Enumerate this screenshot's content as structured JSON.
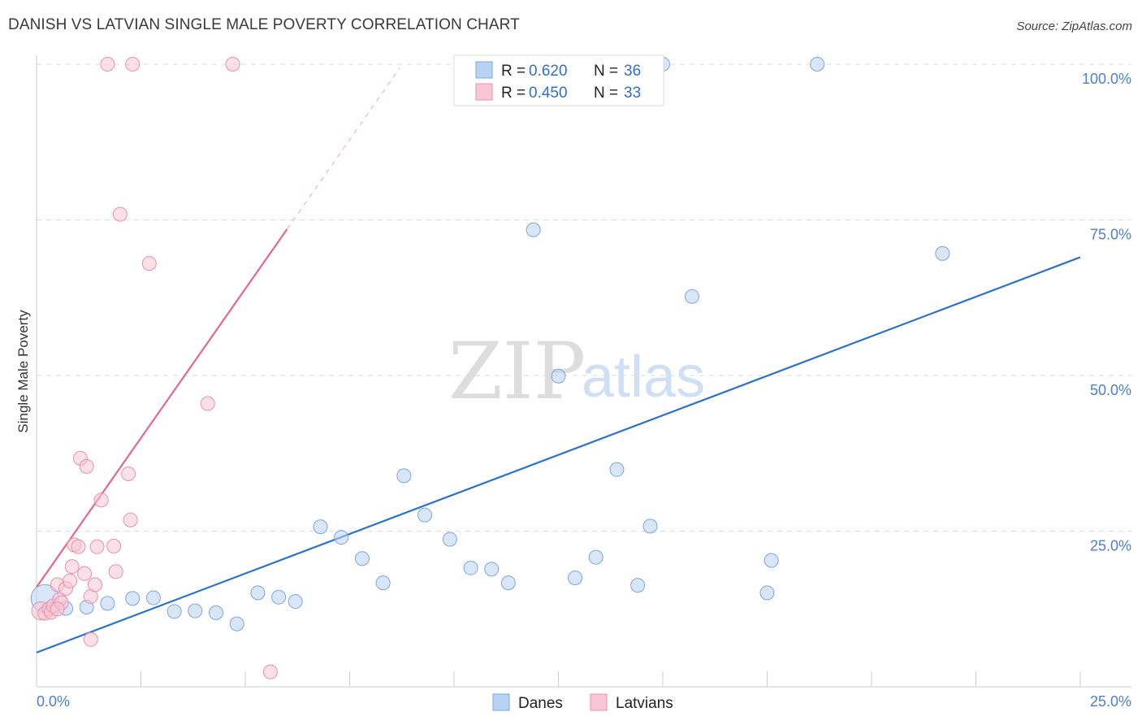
{
  "title": "DANISH VS LATVIAN SINGLE MALE POVERTY CORRELATION CHART",
  "source": "Source: ZipAtlas.com",
  "watermark": {
    "zip": "ZIP",
    "atlas": "atlas"
  },
  "colors": {
    "danes_fill": "#b8d2f3",
    "danes_stroke": "#7aa6e0",
    "danes_line": "#2b72d0",
    "latvians_fill": "#f8c6d4",
    "latvians_stroke": "#ec8fab",
    "latvians_line": "#e5678f",
    "axis_text": "#4a7fd4",
    "grid": "#dddddd"
  },
  "legend": {
    "danes": {
      "r_label": "R =",
      "r_value": "0.620",
      "n_label": "N =",
      "n_value": "36"
    },
    "latvians": {
      "r_label": "R =",
      "r_value": "0.450",
      "n_label": "N =",
      "n_value": "33"
    }
  },
  "chart_data": {
    "type": "scatter",
    "title": "DANISH VS LATVIAN SINGLE MALE POVERTY CORRELATION CHART",
    "xlabel": "",
    "ylabel": "Single Male Poverty",
    "xlim": [
      0,
      25
    ],
    "ylim": [
      0,
      100
    ],
    "x_tick_labels": [
      "0.0%",
      "25.0%"
    ],
    "y_ticks": [
      25,
      50,
      75,
      100
    ],
    "y_tick_labels": [
      "25.0%",
      "50.0%",
      "75.0%",
      "100.0%"
    ],
    "legend_position": "bottom-center",
    "series": [
      {
        "name": "Danes",
        "r": 0.62,
        "n": 36,
        "trend": {
          "x0": 0,
          "y0": 5.5,
          "x1": 25,
          "y1": 69
        },
        "points": [
          {
            "x": 0.2,
            "y": 14.2,
            "s": 2.0
          },
          {
            "x": 0.7,
            "y": 12.6,
            "s": 1.0
          },
          {
            "x": 1.2,
            "y": 12.8,
            "s": 1
          },
          {
            "x": 1.7,
            "y": 13.4,
            "s": 1
          },
          {
            "x": 2.3,
            "y": 14.2,
            "s": 1
          },
          {
            "x": 2.8,
            "y": 14.3,
            "s": 1
          },
          {
            "x": 3.3,
            "y": 12.1,
            "s": 1
          },
          {
            "x": 3.8,
            "y": 12.2,
            "s": 1
          },
          {
            "x": 4.3,
            "y": 11.9,
            "s": 1
          },
          {
            "x": 4.8,
            "y": 10.1,
            "s": 1
          },
          {
            "x": 5.3,
            "y": 15.1,
            "s": 1
          },
          {
            "x": 5.8,
            "y": 14.4,
            "s": 1
          },
          {
            "x": 6.2,
            "y": 13.7,
            "s": 1
          },
          {
            "x": 6.8,
            "y": 25.7,
            "s": 1
          },
          {
            "x": 7.3,
            "y": 24.0,
            "s": 1
          },
          {
            "x": 7.8,
            "y": 20.6,
            "s": 1
          },
          {
            "x": 8.3,
            "y": 16.7,
            "s": 1
          },
          {
            "x": 8.8,
            "y": 33.9,
            "s": 1
          },
          {
            "x": 9.3,
            "y": 27.6,
            "s": 1
          },
          {
            "x": 9.9,
            "y": 23.7,
            "s": 1
          },
          {
            "x": 10.4,
            "y": 19.1,
            "s": 1
          },
          {
            "x": 10.9,
            "y": 18.9,
            "s": 1
          },
          {
            "x": 11.3,
            "y": 16.7,
            "s": 1
          },
          {
            "x": 11.9,
            "y": 73.4,
            "s": 1
          },
          {
            "x": 12.5,
            "y": 49.9,
            "s": 1
          },
          {
            "x": 12.9,
            "y": 17.5,
            "s": 1
          },
          {
            "x": 13.4,
            "y": 20.8,
            "s": 1
          },
          {
            "x": 13.9,
            "y": 34.9,
            "s": 1
          },
          {
            "x": 14.4,
            "y": 16.3,
            "s": 1
          },
          {
            "x": 14.7,
            "y": 25.8,
            "s": 1
          },
          {
            "x": 15.0,
            "y": 100.0,
            "s": 1
          },
          {
            "x": 15.7,
            "y": 62.7,
            "s": 1
          },
          {
            "x": 17.5,
            "y": 15.1,
            "s": 1
          },
          {
            "x": 17.6,
            "y": 20.3,
            "s": 1
          },
          {
            "x": 18.7,
            "y": 100.0,
            "s": 1
          },
          {
            "x": 21.7,
            "y": 69.6,
            "s": 1
          }
        ]
      },
      {
        "name": "Latvians",
        "r": 0.45,
        "n": 33,
        "trend": {
          "x0": 0,
          "y0": 16,
          "x1": 6.0,
          "y1": 73.5,
          "dash_to_x": 8.7,
          "dash_to_y": 99.4
        },
        "points": [
          {
            "x": 0.1,
            "y": 12.2,
            "s": 1.3
          },
          {
            "x": 0.2,
            "y": 11.8,
            "s": 1
          },
          {
            "x": 0.3,
            "y": 12.5,
            "s": 1
          },
          {
            "x": 0.35,
            "y": 12.0,
            "s": 1
          },
          {
            "x": 0.4,
            "y": 13.0,
            "s": 1
          },
          {
            "x": 0.5,
            "y": 16.4,
            "s": 1
          },
          {
            "x": 0.55,
            "y": 14.0,
            "s": 1
          },
          {
            "x": 0.6,
            "y": 13.5,
            "s": 1
          },
          {
            "x": 0.7,
            "y": 15.8,
            "s": 1
          },
          {
            "x": 0.8,
            "y": 17.0,
            "s": 1
          },
          {
            "x": 0.85,
            "y": 19.3,
            "s": 1
          },
          {
            "x": 0.9,
            "y": 22.8,
            "s": 1
          },
          {
            "x": 1.0,
            "y": 22.5,
            "s": 1
          },
          {
            "x": 1.05,
            "y": 36.7,
            "s": 1
          },
          {
            "x": 1.15,
            "y": 18.2,
            "s": 1
          },
          {
            "x": 1.2,
            "y": 35.4,
            "s": 1
          },
          {
            "x": 1.3,
            "y": 14.5,
            "s": 1
          },
          {
            "x": 1.4,
            "y": 16.4,
            "s": 1
          },
          {
            "x": 1.45,
            "y": 22.5,
            "s": 1
          },
          {
            "x": 1.55,
            "y": 30.0,
            "s": 1
          },
          {
            "x": 1.3,
            "y": 7.6,
            "s": 1
          },
          {
            "x": 1.7,
            "y": 100.0,
            "s": 1
          },
          {
            "x": 1.85,
            "y": 22.6,
            "s": 1
          },
          {
            "x": 1.9,
            "y": 18.5,
            "s": 1
          },
          {
            "x": 2.0,
            "y": 75.9,
            "s": 1
          },
          {
            "x": 2.2,
            "y": 34.2,
            "s": 1
          },
          {
            "x": 2.3,
            "y": 100.0,
            "s": 1
          },
          {
            "x": 2.25,
            "y": 26.8,
            "s": 1
          },
          {
            "x": 2.7,
            "y": 68.0,
            "s": 1
          },
          {
            "x": 4.1,
            "y": 45.5,
            "s": 1
          },
          {
            "x": 4.7,
            "y": 100.0,
            "s": 1
          },
          {
            "x": 5.6,
            "y": 2.4,
            "s": 1
          },
          {
            "x": 0.5,
            "y": 12.5,
            "s": 1
          }
        ]
      }
    ]
  },
  "bottom_legend": {
    "danes": "Danes",
    "latvians": "Latvians"
  }
}
